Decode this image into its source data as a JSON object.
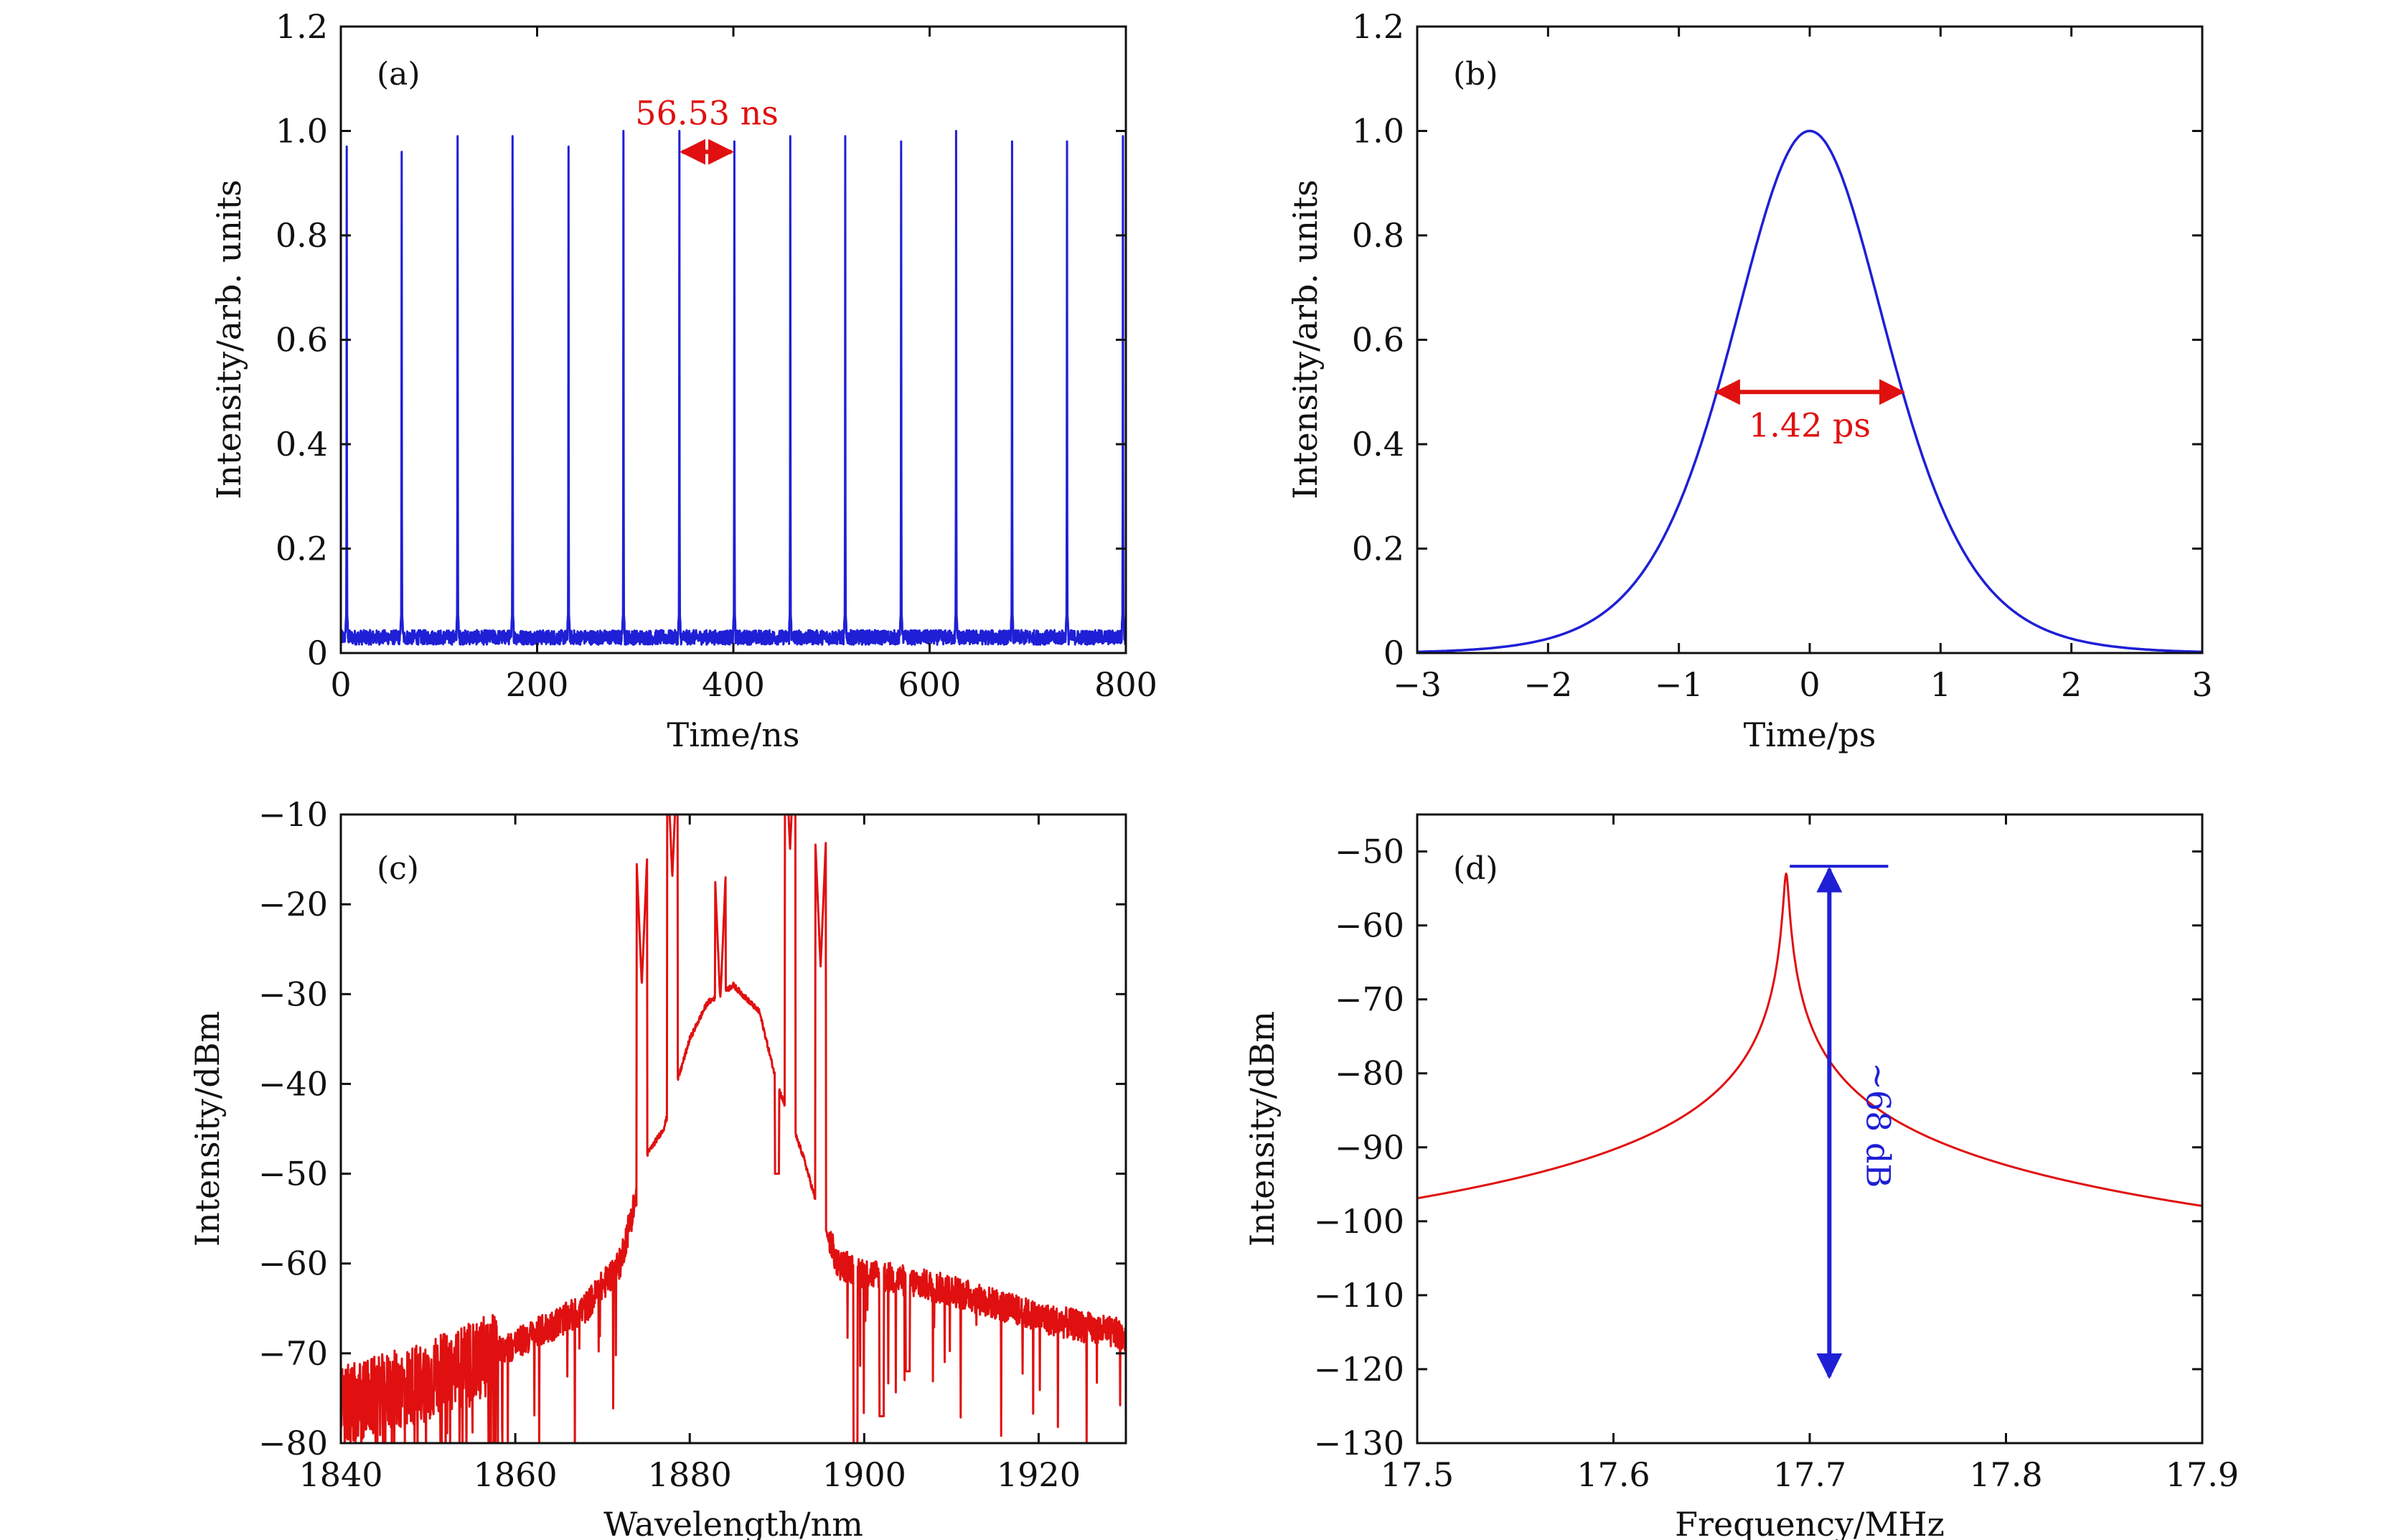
{
  "colors": {
    "blue": "#1f1fd6",
    "red": "#e01010",
    "axis": "#111111"
  },
  "chart_data": [
    {
      "panel": "(a)",
      "type": "line",
      "xlabel": "Time/ns",
      "ylabel": "Intensity/arb. units",
      "xlim": [
        0,
        800
      ],
      "ylim": [
        0,
        1.2
      ],
      "xticks": [
        0,
        200,
        400,
        600,
        800
      ],
      "xtick_labels": [
        "0",
        "200",
        "400",
        "600",
        "800"
      ],
      "yticks": [
        0,
        0.2,
        0.4,
        0.6,
        0.8,
        1.0,
        1.2
      ],
      "ytick_labels": [
        "0",
        "0.2",
        "0.4",
        "0.6",
        "0.8",
        "1.0",
        "1.2"
      ],
      "series": [
        {
          "color": "#1f1fd6",
          "baseline": 0.03,
          "pulse_times_ns": [
            6,
            62,
            119,
            175,
            232,
            288,
            345,
            401,
            458,
            514,
            571,
            627,
            684,
            740,
            797
          ],
          "pulse_heights": [
            0.97,
            0.96,
            0.99,
            0.99,
            0.97,
            1.0,
            1.0,
            0.98,
            0.99,
            0.99,
            0.98,
            1.0,
            0.98,
            0.98,
            0.99
          ]
        }
      ],
      "annotations": [
        {
          "text": "56.53 ns",
          "x_from": 345,
          "x_to": 401,
          "y": 0.96,
          "color": "#e01010"
        }
      ]
    },
    {
      "panel": "(b)",
      "type": "line",
      "xlabel": "Time/ps",
      "ylabel": "Intensity/arb. units",
      "xlim": [
        -3,
        3
      ],
      "ylim": [
        0,
        1.2
      ],
      "xticks": [
        -3,
        -2,
        -1,
        0,
        1,
        2,
        3
      ],
      "xtick_labels": [
        "−3",
        "−2",
        "−1",
        "0",
        "1",
        "2",
        "3"
      ],
      "yticks": [
        0,
        0.2,
        0.4,
        0.6,
        0.8,
        1.0,
        1.2
      ],
      "ytick_labels": [
        "0",
        "0.2",
        "0.4",
        "0.6",
        "0.8",
        "1.0",
        "1.2"
      ],
      "series": [
        {
          "color": "#1f1fd6",
          "shape": "sech2",
          "peak": 1.0,
          "center_ps": 0,
          "fwhm_ps": 1.42
        }
      ],
      "annotations": [
        {
          "text": "1.42 ps",
          "x_from": -0.71,
          "x_to": 0.71,
          "y": 0.5,
          "color": "#e01010"
        }
      ]
    },
    {
      "panel": "(c)",
      "type": "line",
      "xlabel": "Wavelength/nm",
      "ylabel": "Intensity/dBm",
      "xlim": [
        1840,
        1930
      ],
      "ylim": [
        -80,
        -10
      ],
      "xticks": [
        1840,
        1860,
        1880,
        1900,
        1920
      ],
      "xtick_labels": [
        "1840",
        "1860",
        "1880",
        "1900",
        "1920"
      ],
      "yticks": [
        -80,
        -70,
        -60,
        -50,
        -40,
        -30,
        -20,
        -10
      ],
      "ytick_labels": [
        "−80",
        "−70",
        "−60",
        "−50",
        "−40",
        "−30",
        "−20",
        "−10"
      ],
      "series": [
        {
          "color": "#e01010",
          "envelope_nm_dbm": [
            [
              1840,
              -76
            ],
            [
              1850,
              -73
            ],
            [
              1860,
              -69
            ],
            [
              1868,
              -65
            ],
            [
              1872,
              -60
            ],
            [
              1875,
              -48
            ],
            [
              1877,
              -45
            ],
            [
              1880,
              -35
            ],
            [
              1882,
              -31
            ],
            [
              1885,
              -29
            ],
            [
              1888,
              -32
            ],
            [
              1890,
              -40
            ],
            [
              1893,
              -48
            ],
            [
              1895,
              -55
            ],
            [
              1897,
              -60
            ],
            [
              1900,
              -61
            ],
            [
              1910,
              -63
            ],
            [
              1920,
              -66
            ],
            [
              1930,
              -68
            ]
          ],
          "peaks_nm_dbm": [
            [
              1874.5,
              -29
            ],
            [
              1878,
              -17
            ],
            [
              1883.5,
              -31
            ],
            [
              1891.5,
              -14
            ],
            [
              1895,
              -27
            ]
          ],
          "dips_nm_dbm": [
            [
              1890,
              -50
            ],
            [
              1899,
              -80
            ],
            [
              1902,
              -77
            ],
            [
              1905,
              -72
            ]
          ]
        }
      ]
    },
    {
      "panel": "(d)",
      "type": "line",
      "xlabel": "Frequency/MHz",
      "ylabel": "Intensity/dBm",
      "xlim": [
        17.5,
        17.9
      ],
      "ylim": [
        -130,
        -45
      ],
      "xticks": [
        17.5,
        17.6,
        17.7,
        17.8,
        17.9
      ],
      "xtick_labels": [
        "17.5",
        "17.6",
        "17.7",
        "17.8",
        "17.9"
      ],
      "yticks": [
        -130,
        -120,
        -110,
        -100,
        -90,
        -80,
        -70,
        -60,
        -50
      ],
      "ytick_labels": [
        "−130",
        "−120",
        "−110",
        "−100",
        "−90",
        "−80",
        "−70",
        "−60",
        "−50"
      ],
      "series": [
        {
          "color": "#e01010",
          "noise_floor_dbm": -124,
          "peak_mhz": 17.688,
          "peak_dbm": -53
        }
      ],
      "annotations": [
        {
          "text": "~68 dB",
          "x": 17.71,
          "y_from": -52,
          "y_to": -121,
          "color": "#1f1fd6"
        }
      ]
    }
  ]
}
